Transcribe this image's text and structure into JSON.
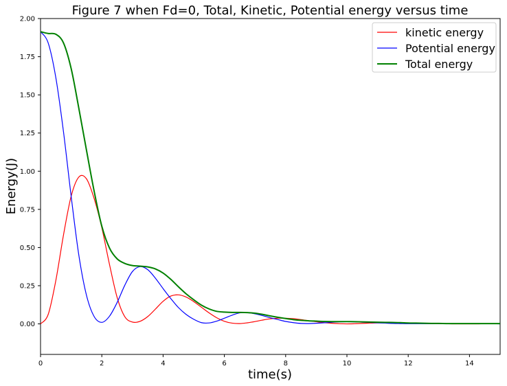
{
  "chart_data": {
    "type": "line",
    "title": "Figure 7 when Fd=0, Total, Kinetic, Potential energy versus time",
    "xlabel": "time(s)",
    "ylabel": "Energy(J)",
    "xlim": [
      0,
      15
    ],
    "ylim": [
      -0.2,
      2.0
    ],
    "xticks": [
      0,
      2,
      4,
      6,
      8,
      10,
      12,
      14
    ],
    "xtick_labels": [
      "0",
      "2",
      "4",
      "6",
      "8",
      "10",
      "12",
      "14"
    ],
    "yticks": [
      0.0,
      0.25,
      0.5,
      0.75,
      1.0,
      1.25,
      1.5,
      1.75,
      2.0
    ],
    "ytick_labels": [
      "0.00",
      "0.25",
      "0.50",
      "0.75",
      "1.00",
      "1.25",
      "1.50",
      "1.75",
      "2.00"
    ],
    "grid": false,
    "legend_position": "top-right",
    "x": [
      0,
      0.25,
      0.5,
      0.75,
      1.0,
      1.25,
      1.5,
      1.75,
      2.0,
      2.25,
      2.5,
      2.75,
      3.0,
      3.25,
      3.5,
      3.75,
      4.0,
      4.25,
      4.5,
      4.75,
      5.0,
      5.25,
      5.5,
      5.75,
      6.0,
      6.25,
      6.5,
      6.75,
      7.0,
      7.25,
      7.5,
      7.75,
      8.0,
      8.25,
      8.5,
      8.75,
      9.0,
      9.25,
      9.5,
      9.75,
      10.0,
      10.25,
      10.5,
      10.75,
      11.0,
      11.25,
      11.5,
      11.75,
      12.0,
      12.25,
      12.5,
      12.75,
      13.0,
      13.25,
      13.5,
      13.75,
      14.0,
      14.25,
      14.5,
      14.75,
      15.0
    ],
    "series": [
      {
        "name": "kinetic energy",
        "color": "#ff0000",
        "values": [
          0.0,
          0.062,
          0.285,
          0.583,
          0.837,
          0.962,
          0.95,
          0.821,
          0.63,
          0.39,
          0.173,
          0.047,
          0.012,
          0.017,
          0.048,
          0.097,
          0.148,
          0.182,
          0.19,
          0.176,
          0.146,
          0.109,
          0.072,
          0.04,
          0.017,
          0.005,
          0.002,
          0.007,
          0.015,
          0.025,
          0.033,
          0.037,
          0.037,
          0.034,
          0.028,
          0.021,
          0.014,
          0.008,
          0.004,
          0.001,
          0.0,
          0.001,
          0.003,
          0.005,
          0.006,
          0.007,
          0.007,
          0.007,
          0.006,
          0.005,
          0.004,
          0.003,
          0.002,
          0.001,
          0.0,
          0.0,
          0.0,
          0.0,
          0.001,
          0.001,
          0.001
        ]
      },
      {
        "name": "Potential energy",
        "color": "#0000ff",
        "values": [
          1.914,
          1.84,
          1.612,
          1.257,
          0.835,
          0.45,
          0.187,
          0.048,
          0.01,
          0.05,
          0.14,
          0.253,
          0.343,
          0.375,
          0.355,
          0.299,
          0.231,
          0.166,
          0.107,
          0.062,
          0.03,
          0.008,
          0.006,
          0.018,
          0.037,
          0.057,
          0.072,
          0.073,
          0.066,
          0.054,
          0.04,
          0.028,
          0.016,
          0.008,
          0.003,
          0.002,
          0.004,
          0.007,
          0.01,
          0.013,
          0.014,
          0.013,
          0.011,
          0.009,
          0.007,
          0.005,
          0.003,
          0.002,
          0.001,
          0.001,
          0.001,
          0.001,
          0.002,
          0.002,
          0.002,
          0.002,
          0.002,
          0.001,
          0.001,
          0.001,
          0.0
        ]
      },
      {
        "name": "Total energy",
        "color": "#008000",
        "values": [
          1.914,
          1.902,
          1.897,
          1.84,
          1.672,
          1.412,
          1.137,
          0.869,
          0.64,
          0.497,
          0.426,
          0.396,
          0.382,
          0.378,
          0.373,
          0.36,
          0.333,
          0.292,
          0.243,
          0.197,
          0.158,
          0.123,
          0.098,
          0.082,
          0.077,
          0.075,
          0.075,
          0.074,
          0.07,
          0.062,
          0.052,
          0.043,
          0.035,
          0.028,
          0.023,
          0.02,
          0.018,
          0.016,
          0.015,
          0.015,
          0.015,
          0.014,
          0.013,
          0.012,
          0.011,
          0.01,
          0.009,
          0.008,
          0.006,
          0.005,
          0.004,
          0.003,
          0.003,
          0.002,
          0.002,
          0.002,
          0.002,
          0.002,
          0.002,
          0.002,
          0.002
        ]
      }
    ]
  }
}
